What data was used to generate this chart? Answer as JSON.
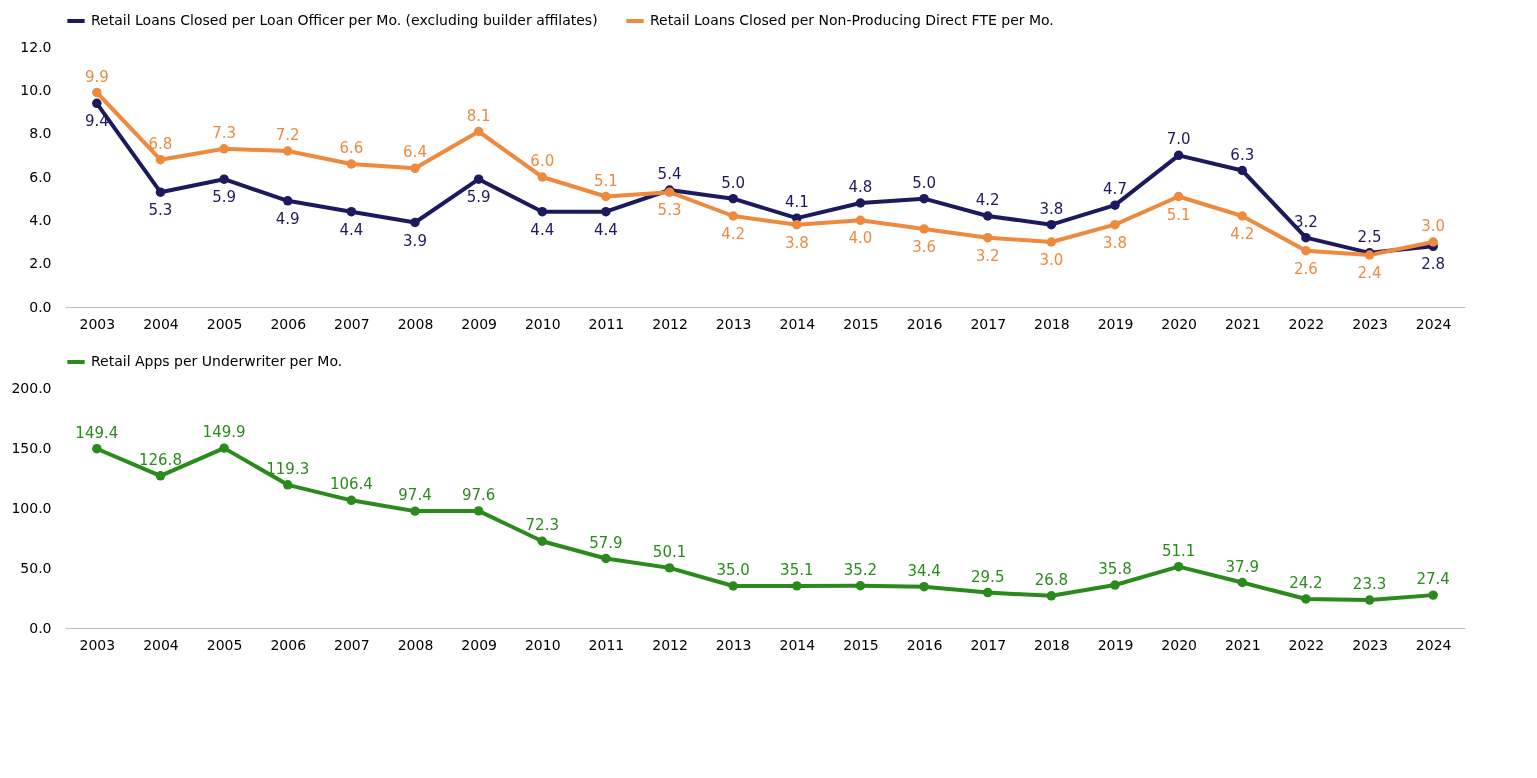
{
  "chart_data": [
    {
      "type": "line",
      "categories": [
        "2003",
        "2004",
        "2005",
        "2006",
        "2007",
        "2008",
        "2009",
        "2010",
        "2011",
        "2012",
        "2013",
        "2014",
        "2015",
        "2016",
        "2017",
        "2018",
        "2019",
        "2020",
        "2021",
        "2022",
        "2023",
        "2024"
      ],
      "series": [
        {
          "name": "Retail Loans Closed per Loan Officer per Mo. (excluding builder affilates)",
          "color": "#1c1a5e",
          "values": [
            9.4,
            5.3,
            5.9,
            4.9,
            4.4,
            3.9,
            5.9,
            4.4,
            4.4,
            5.4,
            5.0,
            4.1,
            4.8,
            5.0,
            4.2,
            3.8,
            4.7,
            7.0,
            6.3,
            3.2,
            2.5,
            2.8
          ],
          "value_labels": [
            "9.4",
            "5.3",
            "5.9",
            "4.9",
            "4.4",
            "3.9",
            "5.9",
            "4.4",
            "4.4",
            "5.4",
            "5.0",
            "4.1",
            "4.8",
            "5.0",
            "4.2",
            "3.8",
            "4.7",
            "7.0",
            "6.3",
            "3.2",
            "2.5",
            "2.8"
          ]
        },
        {
          "name": "Retail Loans Closed per Non-Producing Direct FTE per Mo.",
          "color": "#ee8a3e",
          "values": [
            9.9,
            6.8,
            7.3,
            7.2,
            6.6,
            6.4,
            8.1,
            6.0,
            5.1,
            5.3,
            4.2,
            3.8,
            4.0,
            3.6,
            3.2,
            3.0,
            3.8,
            5.1,
            4.2,
            2.6,
            2.4,
            3.0
          ],
          "value_labels": [
            "9.9",
            "6.8",
            "7.3",
            "7.2",
            "6.6",
            "6.4",
            "8.1",
            "6.0",
            "5.1",
            "5.3",
            "4.2",
            "3.8",
            "4.0",
            "3.6",
            "3.2",
            "3.0",
            "3.8",
            "5.1",
            "4.2",
            "2.6",
            "2.4",
            "3.0"
          ]
        }
      ],
      "ylim": [
        0,
        12
      ],
      "yticks": [
        {
          "value": 0,
          "label": "0.0"
        },
        {
          "value": 2,
          "label": "2.0"
        },
        {
          "value": 4,
          "label": "4.0"
        },
        {
          "value": 6,
          "label": "6.0"
        },
        {
          "value": 8,
          "label": "8.0"
        },
        {
          "value": 10,
          "label": "10.0"
        },
        {
          "value": 12,
          "label": "12.0"
        }
      ],
      "marker": "circle",
      "legend": "top",
      "grid": false
    },
    {
      "type": "line",
      "categories": [
        "2003",
        "2004",
        "2005",
        "2006",
        "2007",
        "2008",
        "2009",
        "2010",
        "2011",
        "2012",
        "2013",
        "2014",
        "2015",
        "2016",
        "2017",
        "2018",
        "2019",
        "2020",
        "2021",
        "2022",
        "2023",
        "2024"
      ],
      "series": [
        {
          "name": "Retail Apps per Underwriter per Mo.",
          "color": "#2a8a1c",
          "values": [
            149.4,
            126.8,
            149.9,
            119.3,
            106.4,
            97.4,
            97.6,
            72.3,
            57.9,
            50.1,
            35.0,
            35.1,
            35.2,
            34.4,
            29.5,
            26.8,
            35.8,
            51.1,
            37.9,
            24.2,
            23.3,
            27.4
          ],
          "value_labels": [
            "149.4",
            "126.8",
            "149.9",
            "119.3",
            "106.4",
            "97.4",
            "97.6",
            "72.3",
            "57.9",
            "50.1",
            "35.0",
            "35.1",
            "35.2",
            "34.4",
            "29.5",
            "26.8",
            "35.8",
            "51.1",
            "37.9",
            "24.2",
            "23.3",
            "27.4"
          ]
        }
      ],
      "ylim": [
        0,
        200
      ],
      "yticks": [
        {
          "value": 0,
          "label": "0.0"
        },
        {
          "value": 50,
          "label": "50.0"
        },
        {
          "value": 100,
          "label": "100.0"
        },
        {
          "value": 150,
          "label": "150.0"
        },
        {
          "value": 200,
          "label": "200.0"
        }
      ],
      "marker": "circle",
      "legend": "top",
      "grid": false
    }
  ]
}
